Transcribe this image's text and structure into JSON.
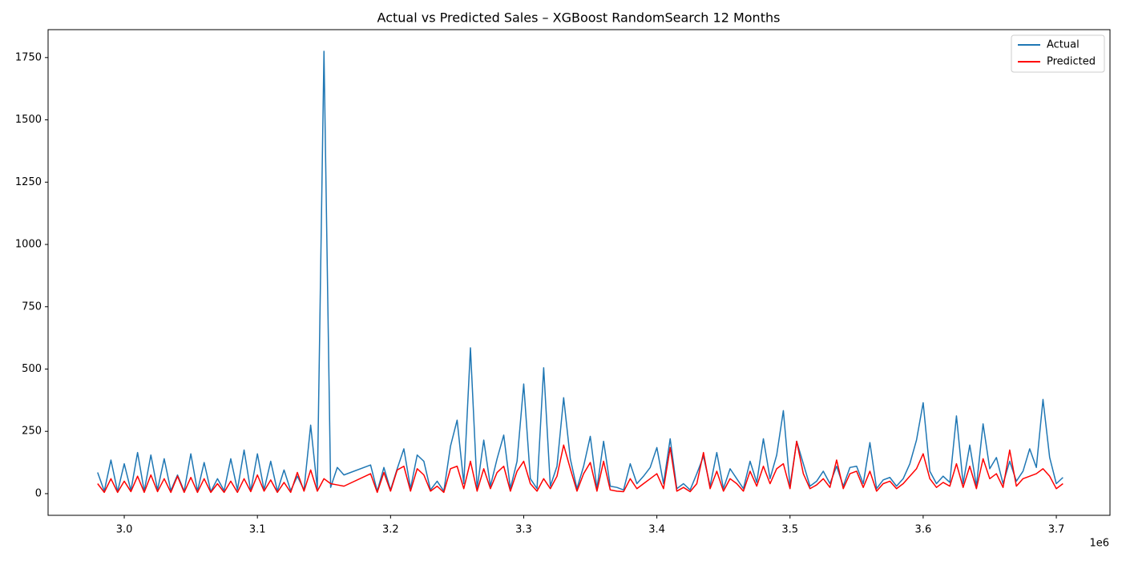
{
  "chart_data": {
    "type": "line",
    "title": "Actual vs Predicted Sales – XGBoost RandomSearch 12 Months",
    "x_offset_label": "1e6",
    "x": [
      2980000,
      2985000,
      2990000,
      2995000,
      3000000,
      3005000,
      3010000,
      3015000,
      3020000,
      3025000,
      3030000,
      3035000,
      3040000,
      3045000,
      3050000,
      3055000,
      3060000,
      3065000,
      3070000,
      3075000,
      3080000,
      3085000,
      3090000,
      3095000,
      3100000,
      3105000,
      3110000,
      3115000,
      3120000,
      3125000,
      3130000,
      3135000,
      3140000,
      3145000,
      3150000,
      3155000,
      3160000,
      3165000,
      3185000,
      3190000,
      3195000,
      3200000,
      3205000,
      3210000,
      3215000,
      3220000,
      3225000,
      3230000,
      3235000,
      3240000,
      3245000,
      3250000,
      3255000,
      3260000,
      3265000,
      3270000,
      3275000,
      3280000,
      3285000,
      3290000,
      3295000,
      3300000,
      3305000,
      3310000,
      3315000,
      3320000,
      3325000,
      3330000,
      3335000,
      3340000,
      3345000,
      3350000,
      3355000,
      3360000,
      3365000,
      3370000,
      3375000,
      3380000,
      3385000,
      3390000,
      3395000,
      3400000,
      3405000,
      3410000,
      3415000,
      3420000,
      3425000,
      3430000,
      3435000,
      3440000,
      3445000,
      3450000,
      3455000,
      3460000,
      3465000,
      3470000,
      3475000,
      3480000,
      3485000,
      3490000,
      3495000,
      3500000,
      3505000,
      3510000,
      3515000,
      3520000,
      3525000,
      3530000,
      3535000,
      3540000,
      3545000,
      3550000,
      3555000,
      3560000,
      3565000,
      3570000,
      3575000,
      3580000,
      3585000,
      3590000,
      3595000,
      3600000,
      3605000,
      3610000,
      3615000,
      3620000,
      3625000,
      3630000,
      3635000,
      3640000,
      3645000,
      3650000,
      3655000,
      3660000,
      3665000,
      3670000,
      3675000,
      3680000,
      3685000,
      3690000,
      3695000,
      3700000,
      3705000
    ],
    "series": [
      {
        "name": "Actual",
        "color": "#1f77b4",
        "values": [
          85,
          10,
          135,
          8,
          120,
          12,
          165,
          10,
          155,
          15,
          140,
          12,
          75,
          10,
          160,
          10,
          125,
          8,
          60,
          12,
          140,
          15,
          175,
          10,
          160,
          15,
          130,
          10,
          95,
          12,
          70,
          15,
          275,
          20,
          1775,
          25,
          105,
          75,
          115,
          10,
          105,
          15,
          100,
          180,
          20,
          155,
          130,
          15,
          50,
          10,
          190,
          295,
          40,
          585,
          20,
          215,
          30,
          140,
          235,
          20,
          130,
          440,
          60,
          20,
          505,
          30,
          110,
          385,
          140,
          20,
          110,
          230,
          20,
          210,
          30,
          25,
          15,
          120,
          40,
          70,
          105,
          185,
          40,
          220,
          20,
          40,
          15,
          80,
          150,
          30,
          165,
          20,
          100,
          60,
          20,
          130,
          45,
          220,
          60,
          155,
          333,
          30,
          210,
          120,
          30,
          50,
          90,
          40,
          110,
          30,
          105,
          110,
          40,
          205,
          20,
          55,
          65,
          30,
          60,
          120,
          215,
          365,
          90,
          40,
          70,
          45,
          312,
          40,
          195,
          30,
          280,
          100,
          145,
          40,
          130,
          50,
          90,
          180,
          105,
          378,
          145,
          40,
          65
        ]
      },
      {
        "name": "Predicted",
        "color": "#ff0000",
        "values": [
          40,
          5,
          60,
          5,
          50,
          8,
          70,
          5,
          75,
          8,
          60,
          5,
          70,
          5,
          65,
          5,
          60,
          5,
          40,
          5,
          50,
          5,
          60,
          8,
          75,
          10,
          55,
          5,
          45,
          5,
          85,
          10,
          95,
          10,
          60,
          40,
          35,
          30,
          80,
          5,
          85,
          10,
          95,
          110,
          10,
          100,
          75,
          10,
          30,
          5,
          100,
          110,
          20,
          130,
          10,
          100,
          20,
          85,
          110,
          10,
          90,
          130,
          40,
          10,
          60,
          20,
          70,
          195,
          100,
          10,
          80,
          125,
          10,
          130,
          15,
          10,
          8,
          60,
          20,
          40,
          60,
          80,
          20,
          185,
          10,
          25,
          8,
          40,
          165,
          20,
          90,
          10,
          60,
          40,
          10,
          90,
          30,
          110,
          40,
          100,
          120,
          20,
          210,
          80,
          20,
          35,
          60,
          25,
          135,
          20,
          80,
          90,
          25,
          90,
          10,
          40,
          50,
          20,
          40,
          70,
          100,
          160,
          60,
          25,
          45,
          30,
          120,
          25,
          110,
          20,
          140,
          60,
          80,
          25,
          175,
          30,
          60,
          70,
          80,
          100,
          70,
          20,
          40
        ]
      }
    ],
    "xlim": [
      2942800,
      3740300
    ],
    "xticks": [
      {
        "value": 3000000,
        "label": "3.0"
      },
      {
        "value": 3100000,
        "label": "3.1"
      },
      {
        "value": 3200000,
        "label": "3.2"
      },
      {
        "value": 3300000,
        "label": "3.3"
      },
      {
        "value": 3400000,
        "label": "3.4"
      },
      {
        "value": 3500000,
        "label": "3.5"
      },
      {
        "value": 3600000,
        "label": "3.6"
      },
      {
        "value": 3700000,
        "label": "3.7"
      }
    ],
    "ylim": [
      -87,
      1862
    ],
    "yticks": [
      0,
      250,
      500,
      750,
      1000,
      1250,
      1500,
      1750
    ],
    "grid": false,
    "legend": "upper right"
  }
}
